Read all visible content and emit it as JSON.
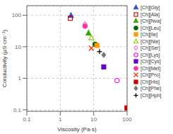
{
  "chart_data": {
    "type": "scatter",
    "xlabel": "Viscosity (Pa·s)",
    "ylabel": "Conductivity (μS·cm⁻¹)",
    "log": true,
    "xlim": [
      0.1,
      100
    ],
    "ylim": [
      0.09,
      200
    ],
    "xticks": [
      0.1,
      1,
      10,
      100
    ],
    "yticks": [
      0.1,
      1,
      10,
      100
    ],
    "grid": true,
    "legend": "right",
    "series": [
      {
        "name": "[Ch][Gly]",
        "color": "#3355CC",
        "marker": "triangle",
        "x": [
          2.1
        ],
        "values": [
          97
        ]
      },
      {
        "name": "[Ch][Ala]",
        "color": "#CC0000",
        "marker": "square-open",
        "x": [
          2.0
        ],
        "values": [
          80
        ]
      },
      {
        "name": "[Ch][Nva]",
        "color": "#33AA00",
        "marker": "triangle",
        "x": [
          7.0
        ],
        "values": [
          27
        ]
      },
      {
        "name": "[Ch][Leu]",
        "color": "#006600",
        "marker": "circle",
        "x": [
          11.0
        ],
        "values": [
          12
        ]
      },
      {
        "name": "[Ch][Ile]",
        "color": "#FF9900",
        "marker": "square",
        "x": [
          12.5
        ],
        "values": [
          11
        ]
      },
      {
        "name": "[Ch][Nle]",
        "color": "#88CC00",
        "marker": "triangle-open",
        "x": [
          8.5
        ],
        "values": [
          19
        ]
      },
      {
        "name": "[Ch][Ser]",
        "color": "#FF66CC",
        "marker": "diamond-open",
        "x": [
          5.5
        ],
        "values": [
          52
        ]
      },
      {
        "name": "[Ch][Lys]",
        "color": "#FF00FF",
        "marker": "circle-open",
        "x": [
          50
        ],
        "values": [
          0.85
        ]
      },
      {
        "name": "[Ch][Cys]",
        "color": "#6600CC",
        "marker": "square",
        "x": [
          20
        ],
        "values": [
          2.3
        ]
      },
      {
        "name": "[Ch][Met]",
        "color": "#FF3399",
        "marker": "circle",
        "x": [
          5.5
        ],
        "values": [
          45
        ]
      },
      {
        "name": "[Ch][Pro]",
        "color": "#FF3300",
        "marker": "x",
        "x": [
          8.5
        ],
        "values": [
          9.0
        ]
      },
      {
        "name": "[Ch][His]",
        "color": "#CC0000",
        "marker": "square",
        "x": [
          99
        ],
        "values": [
          0.115
        ]
      },
      {
        "name": "[Ch][Phe]",
        "color": "#777777",
        "marker": "diamond",
        "x": [
          20
        ],
        "values": [
          5.5
        ]
      },
      {
        "name": "[Ch][Hph]",
        "color": "#000000",
        "marker": "plus",
        "x": [
          15
        ],
        "values": [
          7.0
        ]
      }
    ]
  }
}
